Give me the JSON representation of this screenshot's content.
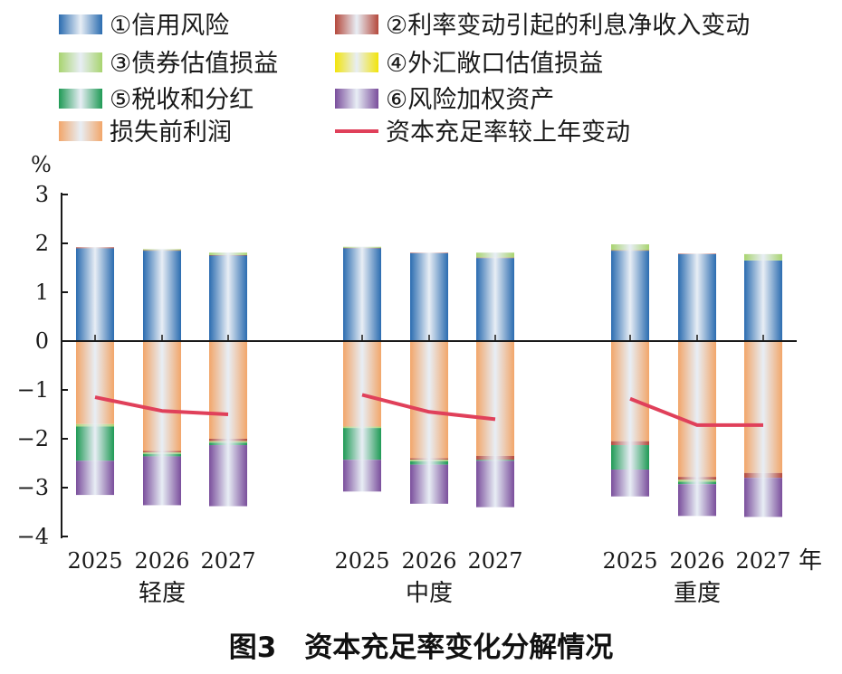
{
  "caption": "图3　资本充足率变化分解情况",
  "chart_data": {
    "type": "bar",
    "stacked": true,
    "title": "图3　资本充足率变化分解情况",
    "ylabel": "%",
    "xunit": "年",
    "ylim": [
      -4,
      3
    ],
    "yticks": [
      3,
      2,
      1,
      0,
      -1,
      -2,
      -3,
      -4
    ],
    "ytick_labels": [
      "3",
      "2",
      "1",
      "0",
      "−1",
      "−2",
      "−3",
      "−4"
    ],
    "groups": [
      {
        "label": "轻度",
        "years": [
          "2025",
          "2026",
          "2027"
        ]
      },
      {
        "label": "中度",
        "years": [
          "2025",
          "2026",
          "2027"
        ]
      },
      {
        "label": "重度",
        "years": [
          "2025",
          "2026",
          "2027"
        ]
      }
    ],
    "series": [
      {
        "name": "①信用风险",
        "color": "#2b6cb0",
        "side": "pos",
        "values": [
          1.9,
          1.85,
          1.75,
          1.9,
          1.8,
          1.7,
          1.85,
          1.78,
          1.65
        ]
      },
      {
        "name": "②利率变动引起的利息净收入变动",
        "color": "#b5493c",
        "side": "pos",
        "values": [
          0.02,
          0.01,
          0.01,
          0.01,
          0.01,
          0.01,
          0.01,
          0.01,
          0.0
        ]
      },
      {
        "name": "③债券估值损益",
        "color": "#a8d46f",
        "side": "pos",
        "values": [
          0.0,
          0.02,
          0.05,
          0.02,
          0.0,
          0.1,
          0.12,
          0.0,
          0.13
        ]
      },
      {
        "name": "④外汇敞口估值损益",
        "color": "#f2e40a",
        "side": "pos",
        "values": [
          0,
          0,
          0,
          0,
          0,
          0,
          0,
          0,
          0
        ]
      },
      {
        "name": "⑤税收和分红",
        "color": "#1f9a55",
        "side": "neg",
        "values": [
          -0.7,
          -0.05,
          -0.05,
          -0.65,
          -0.07,
          -0.02,
          -0.5,
          -0.05,
          0.0
        ]
      },
      {
        "name": "⑥风险加权资产",
        "color": "#7a4e9c",
        "side": "neg",
        "values": [
          -0.7,
          -1.0,
          -1.25,
          -0.65,
          -0.8,
          -0.95,
          -0.55,
          -0.65,
          -0.8
        ]
      },
      {
        "name": "损失前利润",
        "color": "#f2a66a",
        "side": "neg",
        "values": [
          -1.7,
          -2.25,
          -2.0,
          -1.75,
          -2.4,
          -2.35,
          -2.05,
          -2.78,
          -2.7
        ]
      }
    ],
    "extra_neg": [
      {
        "color": "#b5493c",
        "values": [
          0.0,
          -0.03,
          -0.05,
          0.0,
          -0.03,
          -0.08,
          -0.08,
          -0.06,
          -0.1
        ]
      },
      {
        "color": "#a8d46f",
        "values": [
          -0.05,
          -0.03,
          -0.03,
          -0.03,
          -0.03,
          0.0,
          0.0,
          -0.04,
          0.0
        ]
      }
    ],
    "line": {
      "name": "资本充足率较上年变动",
      "color": "#e0405a",
      "values": [
        -1.15,
        -1.43,
        -1.5,
        -1.1,
        -1.45,
        -1.6,
        -1.18,
        -1.72,
        -1.72
      ]
    }
  }
}
